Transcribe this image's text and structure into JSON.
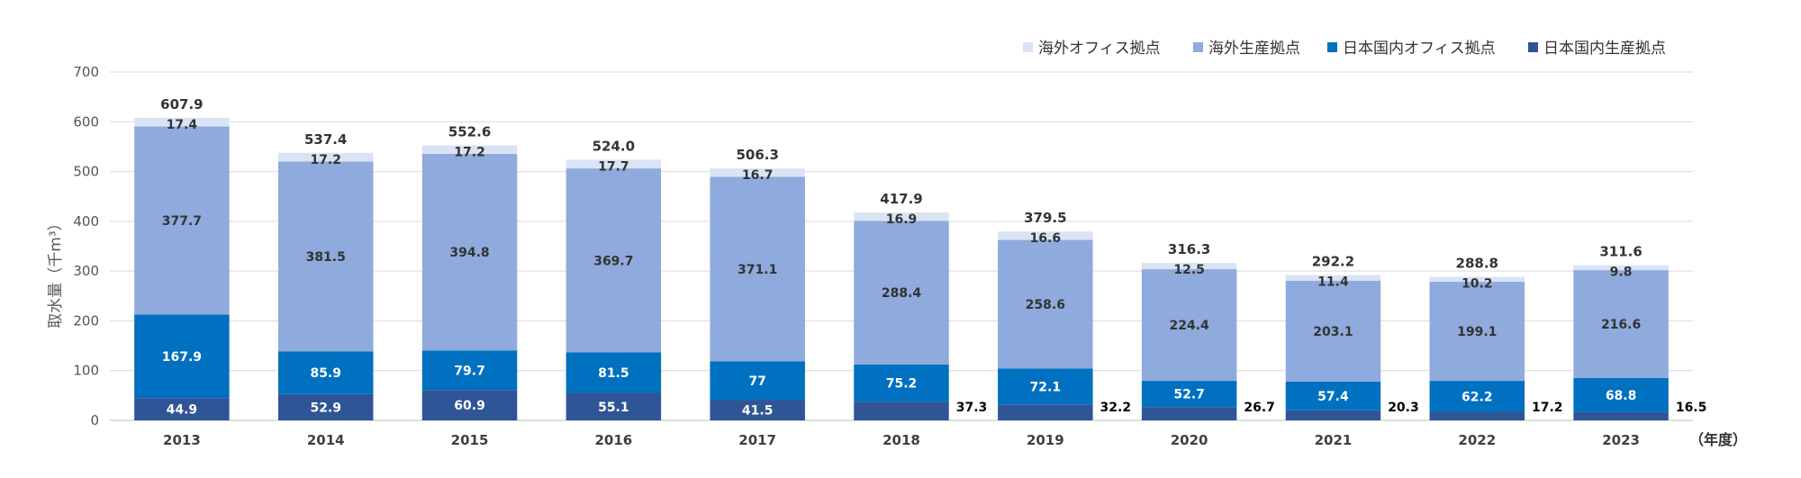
{
  "chart_data": {
    "type": "bar",
    "stacked": true,
    "ylabel": "取水量（千m³）",
    "x_unit_label": "（年度）",
    "ylim": [
      0,
      700
    ],
    "yticks": [
      0,
      100,
      200,
      300,
      400,
      500,
      600,
      700
    ],
    "grid": true,
    "legend_position": "top-right",
    "categories": [
      "2013",
      "2014",
      "2015",
      "2016",
      "2017",
      "2018",
      "2019",
      "2020",
      "2021",
      "2022",
      "2023"
    ],
    "series": [
      {
        "name": "日本国内生産拠点",
        "color": "#2f5597",
        "label_color": "#ffffff",
        "values": [
          44.9,
          52.9,
          60.9,
          55.1,
          41.5,
          37.3,
          32.2,
          26.7,
          20.3,
          17.2,
          16.5
        ]
      },
      {
        "name": "日本国内オフィス拠点",
        "color": "#0070c0",
        "label_color": "#ffffff",
        "values": [
          167.9,
          85.9,
          79.7,
          81.5,
          77.0,
          75.2,
          72.1,
          52.7,
          57.4,
          62.2,
          68.8
        ]
      },
      {
        "name": "海外生産拠点",
        "color": "#8faadc",
        "label_color": "#333333",
        "values": [
          377.7,
          381.5,
          394.8,
          369.7,
          371.1,
          288.4,
          258.6,
          224.4,
          203.1,
          199.1,
          216.6
        ]
      },
      {
        "name": "海外オフィス拠点",
        "color": "#dae3f3",
        "label_color": "#333333",
        "values": [
          17.4,
          17.2,
          17.2,
          17.7,
          16.7,
          16.9,
          16.6,
          12.5,
          11.4,
          10.2,
          9.8
        ]
      }
    ],
    "totals": [
      607.9,
      537.4,
      552.6,
      524.0,
      506.3,
      417.9,
      379.5,
      316.3,
      292.2,
      288.8,
      311.6
    ],
    "legend_order": [
      "海外オフィス拠点",
      "海外生産拠点",
      "日本国内オフィス拠点",
      "日本国内生産拠点"
    ]
  }
}
